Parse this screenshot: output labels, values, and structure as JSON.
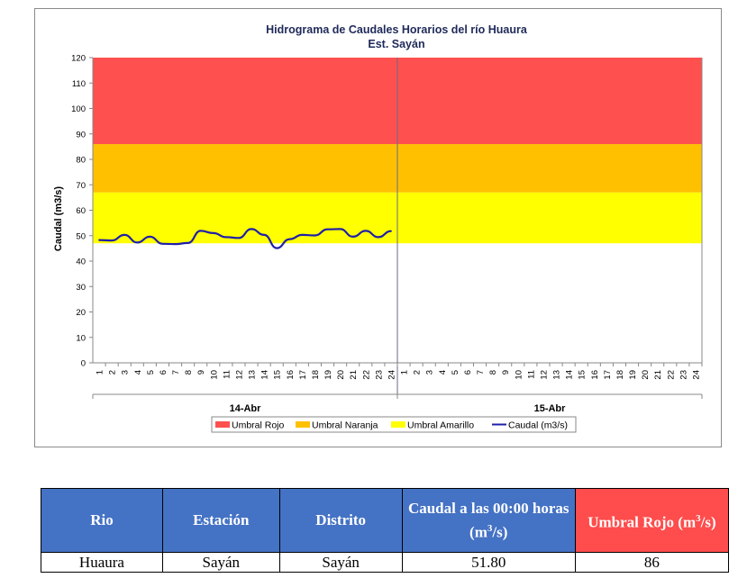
{
  "chart_data": {
    "type": "line",
    "title": "Hidrograma de Caudales Horarios del río Huaura",
    "subtitle": "Est. Sayán",
    "ylabel": "Caudal  (m3/s)",
    "ylim": [
      0,
      120
    ],
    "yticks": [
      0,
      10,
      20,
      30,
      40,
      50,
      60,
      70,
      80,
      90,
      100,
      110,
      120
    ],
    "hour_ticks": [
      "1",
      "2",
      "3",
      "4",
      "5",
      "6",
      "7",
      "8",
      "9",
      "10",
      "11",
      "12",
      "13",
      "14",
      "15",
      "16",
      "17",
      "18",
      "19",
      "20",
      "21",
      "22",
      "23",
      "24"
    ],
    "day_labels": [
      "14-Abr",
      "15-Abr"
    ],
    "thresholds": [
      {
        "name": "Umbral Amarillo",
        "value": 47,
        "color": "#ffff00"
      },
      {
        "name": "Umbral Naranja",
        "value": 67,
        "color": "#ffc000"
      },
      {
        "name": "Umbral Rojo",
        "value": 86,
        "color": "#ff5050"
      }
    ],
    "series": [
      {
        "name": "Caudal (m3/s)",
        "color": "#1f1fa8",
        "values": [
          48.3,
          48.1,
          50.3,
          47.3,
          49.6,
          46.8,
          46.7,
          47.1,
          51.9,
          51.0,
          49.4,
          49.1,
          52.6,
          50.3,
          45.1,
          48.6,
          50.3,
          50.1,
          52.5,
          52.6,
          49.6,
          51.9,
          49.4,
          51.8
        ]
      }
    ],
    "legend": [
      "Umbral Rojo",
      "Umbral Naranja",
      "Umbral Amarillo",
      "Caudal (m3/s)"
    ],
    "legend_position": "bottom",
    "grid": false
  },
  "table": {
    "headers": [
      "Rio",
      "Estación",
      "Distrito",
      "Caudal a las 00:00 horas (m",
      "Umbral Rojo (m"
    ],
    "unit_sup": "3",
    "unit_tail": "/s)",
    "row": [
      "Huaura",
      "Sayán",
      "Sayán",
      "51.80",
      "86"
    ]
  }
}
